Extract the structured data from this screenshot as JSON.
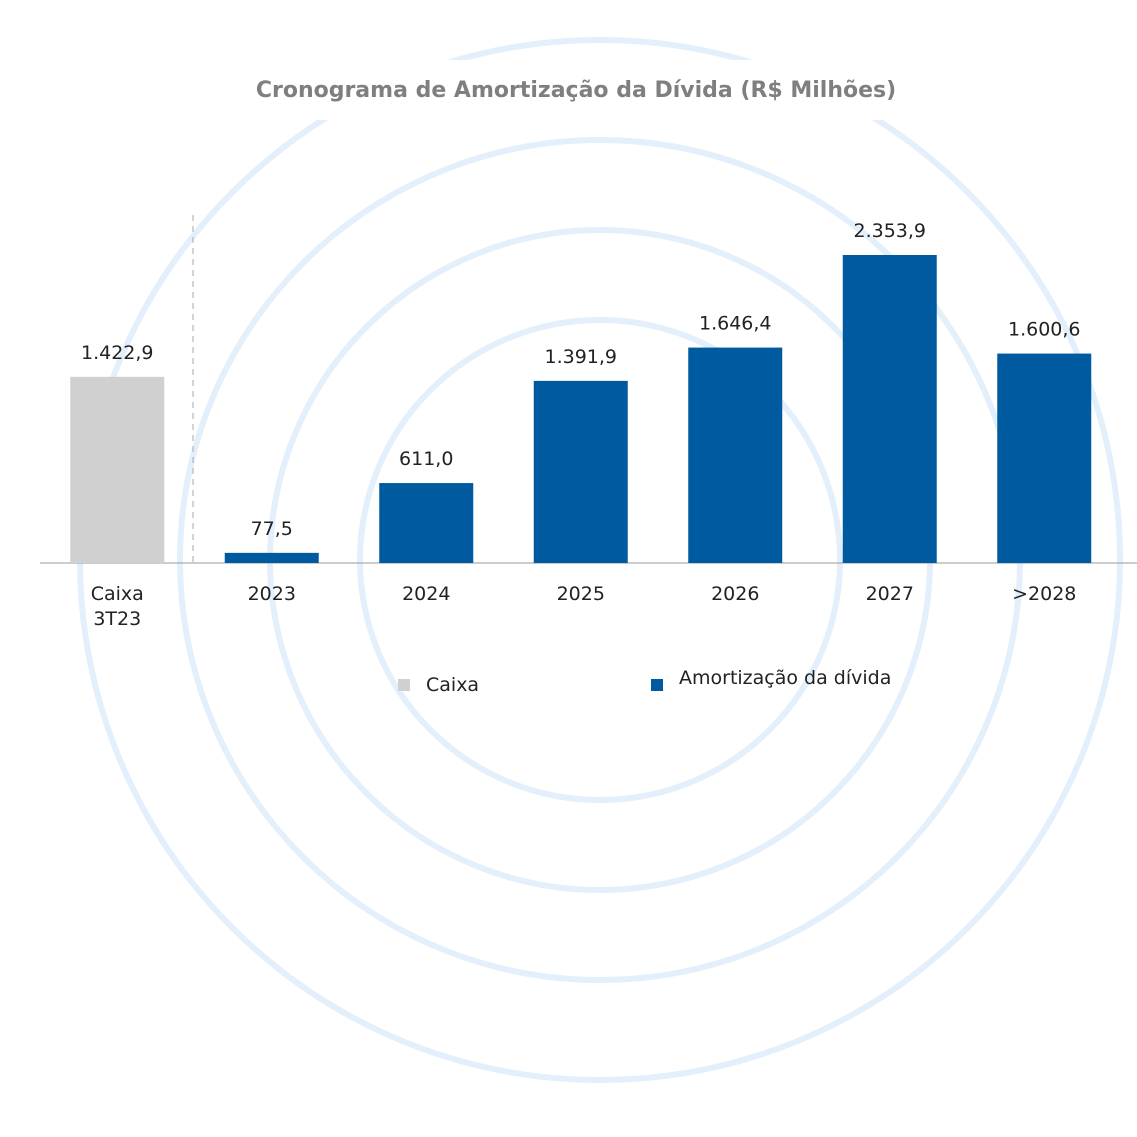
{
  "chart_data": {
    "type": "bar",
    "title": "Cronograma de Amortização da Dívida (R$ Milhões)",
    "categories": [
      "Caixa 3T23",
      "2023",
      "2024",
      "2025",
      "2026",
      "2027",
      ">2028"
    ],
    "series": [
      {
        "name": "Caixa",
        "color": "#d0d0d0",
        "values": [
          1422.9,
          null,
          null,
          null,
          null,
          null,
          null
        ],
        "value_labels": [
          "1.422,9",
          null,
          null,
          null,
          null,
          null,
          null
        ]
      },
      {
        "name": "Amortização da dívida",
        "color": "#005aa0",
        "values": [
          null,
          77.5,
          611.0,
          1391.9,
          1646.4,
          2353.9,
          1600.6
        ],
        "value_labels": [
          null,
          "77,5",
          "611,0",
          "1.391,9",
          "1.646,4",
          "2.353,9",
          "1.600,6"
        ]
      }
    ]
  }
}
